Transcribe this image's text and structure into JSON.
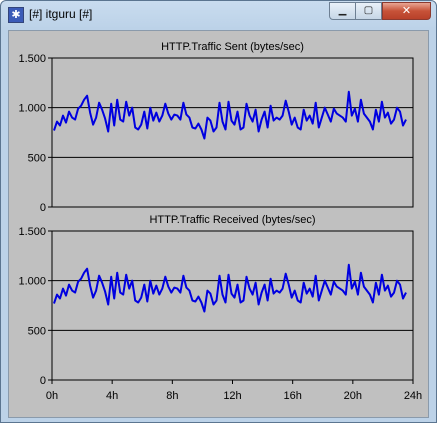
{
  "window": {
    "title": "[#] itguru [#]",
    "controls": {
      "minimize": "▁",
      "maximize": "▢",
      "close": "✕"
    }
  },
  "colors": {
    "plot_bg": "#c0c0c0",
    "series": "#0000e0",
    "gridline": "#000000"
  },
  "chart_data": [
    {
      "type": "line",
      "title": "HTTP.Traffic Sent (bytes/sec)",
      "ylim": [
        0,
        1500
      ],
      "yticks": [
        0,
        500,
        1000,
        1500
      ],
      "ytick_labels": [
        "0",
        "500",
        "1.000",
        "1.500"
      ],
      "xlim": [
        0,
        24
      ],
      "x_unit": "h",
      "grid": "horizontal",
      "series": [
        {
          "values": [
            770,
            860,
            820,
            920,
            850,
            960,
            900,
            880,
            990,
            1020,
            1080,
            1120,
            950,
            830,
            900,
            1050,
            980,
            890,
            760,
            1040,
            820,
            1080,
            880,
            860,
            1060,
            920,
            1000,
            800,
            780,
            830,
            960,
            790,
            1000,
            870,
            950,
            860,
            920,
            1040,
            940,
            880,
            930,
            920,
            880,
            1050,
            930,
            900,
            800,
            790,
            840,
            780,
            690,
            900,
            870,
            760,
            800,
            1050,
            860,
            780,
            1060,
            870,
            830,
            960,
            780,
            800,
            1040,
            920,
            860,
            980,
            760,
            880,
            960,
            800,
            1020,
            870,
            900,
            880,
            920,
            1070,
            960,
            830,
            900,
            800,
            780,
            980,
            870,
            920,
            840,
            1050,
            800,
            900,
            1000,
            930,
            860,
            990,
            940,
            920,
            900,
            860,
            1160,
            920,
            990,
            860,
            1080,
            940,
            900,
            860,
            780,
            980,
            860,
            1060,
            900,
            950,
            840,
            880,
            1000,
            960,
            820,
            880
          ]
        }
      ]
    },
    {
      "type": "line",
      "title": "HTTP.Traffic Received (bytes/sec)",
      "ylim": [
        0,
        1500
      ],
      "yticks": [
        0,
        500,
        1000,
        1500
      ],
      "ytick_labels": [
        "0",
        "500",
        "1.000",
        "1.500"
      ],
      "xlim": [
        0,
        24
      ],
      "xticks": [
        0,
        4,
        8,
        12,
        16,
        20,
        24
      ],
      "xtick_labels": [
        "0h",
        "4h",
        "8h",
        "12h",
        "16h",
        "20h",
        "24h"
      ],
      "grid": "horizontal",
      "series": [
        {
          "values": [
            770,
            860,
            820,
            920,
            850,
            960,
            900,
            880,
            990,
            1020,
            1080,
            1120,
            950,
            830,
            900,
            1050,
            980,
            890,
            760,
            1040,
            820,
            1080,
            880,
            860,
            1060,
            920,
            1000,
            800,
            780,
            830,
            960,
            790,
            1000,
            870,
            950,
            860,
            920,
            1040,
            940,
            880,
            930,
            920,
            880,
            1050,
            930,
            900,
            800,
            790,
            840,
            780,
            690,
            900,
            870,
            760,
            800,
            1050,
            860,
            780,
            1060,
            870,
            830,
            960,
            780,
            800,
            1040,
            920,
            860,
            980,
            760,
            880,
            960,
            800,
            1020,
            870,
            900,
            880,
            920,
            1070,
            960,
            830,
            900,
            800,
            780,
            980,
            870,
            920,
            840,
            1050,
            800,
            900,
            1000,
            930,
            860,
            990,
            940,
            920,
            900,
            860,
            1160,
            920,
            990,
            860,
            1080,
            940,
            900,
            860,
            780,
            980,
            860,
            1060,
            900,
            950,
            840,
            880,
            1000,
            960,
            820,
            880
          ]
        }
      ]
    }
  ]
}
